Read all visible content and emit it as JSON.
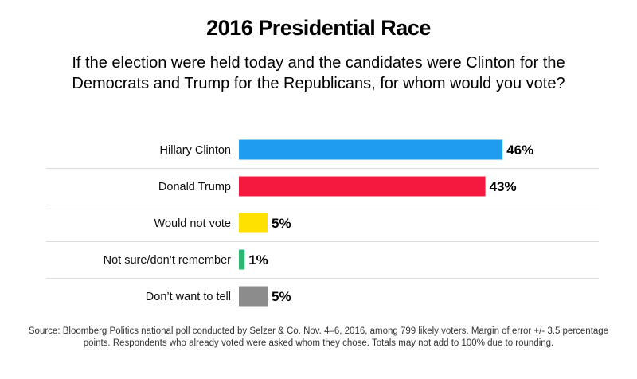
{
  "chart_data": {
    "type": "bar",
    "orientation": "horizontal",
    "title": "2016 Presidential Race",
    "subtitle": "If the election were held today and the candidates were Clinton for the Democrats and Trump for the Republicans, for whom would you vote?",
    "categories": [
      "Hillary Clinton",
      "Donald Trump",
      "Would not vote",
      "Not sure/don’t remember",
      "Don’t want to tell"
    ],
    "values": [
      46,
      43,
      5,
      1,
      5
    ],
    "value_labels": [
      "46%",
      "43%",
      "5%",
      "1%",
      "5%"
    ],
    "colors": [
      "#1f9bef",
      "#f5193f",
      "#ffe100",
      "#2bb673",
      "#8c8c8c"
    ],
    "xlim": [
      0,
      50
    ],
    "grid": false,
    "source": "Source: Bloomberg Politics national poll conducted by Selzer & Co. Nov. 4–6, 2016, among 799 likely voters. Margin of error +/- 3.5 percentage points. Respondents who already voted were asked whom they chose. Totals may not add to 100% due to rounding."
  }
}
